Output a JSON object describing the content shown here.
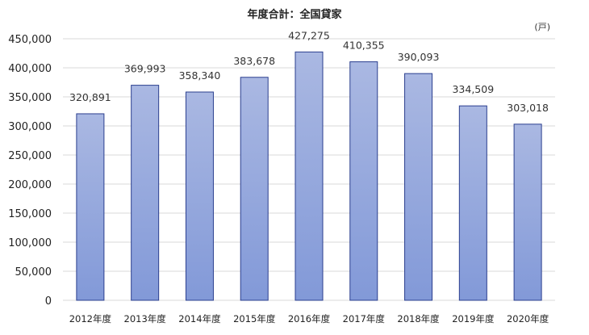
{
  "chart_data": {
    "type": "bar",
    "title": "年度合計：全国貸家",
    "unit_label": "(戸)",
    "categories": [
      "2012年度",
      "2013年度",
      "2014年度",
      "2015年度",
      "2016年度",
      "2017年度",
      "2018年度",
      "2019年度",
      "2020年度"
    ],
    "values": [
      320891,
      369993,
      358340,
      383678,
      427275,
      410355,
      390093,
      334509,
      303018
    ],
    "data_labels": [
      "320,891",
      "369,993",
      "358,340",
      "383,678",
      "427,275",
      "410,355",
      "390,093",
      "334,509",
      "303,018"
    ],
    "yticks": [
      "0",
      "50,000",
      "100,000",
      "150,000",
      "200,000",
      "250,000",
      "300,000",
      "350,000",
      "400,000",
      "450,000"
    ],
    "ylim": [
      0,
      450000
    ],
    "grid": true,
    "legend": "none",
    "colors": {
      "bar_top": "#aab8e2",
      "bar_bottom": "#8299d8",
      "bar_stroke": "#2b3f8f",
      "grid": "#d9d9d9"
    }
  }
}
